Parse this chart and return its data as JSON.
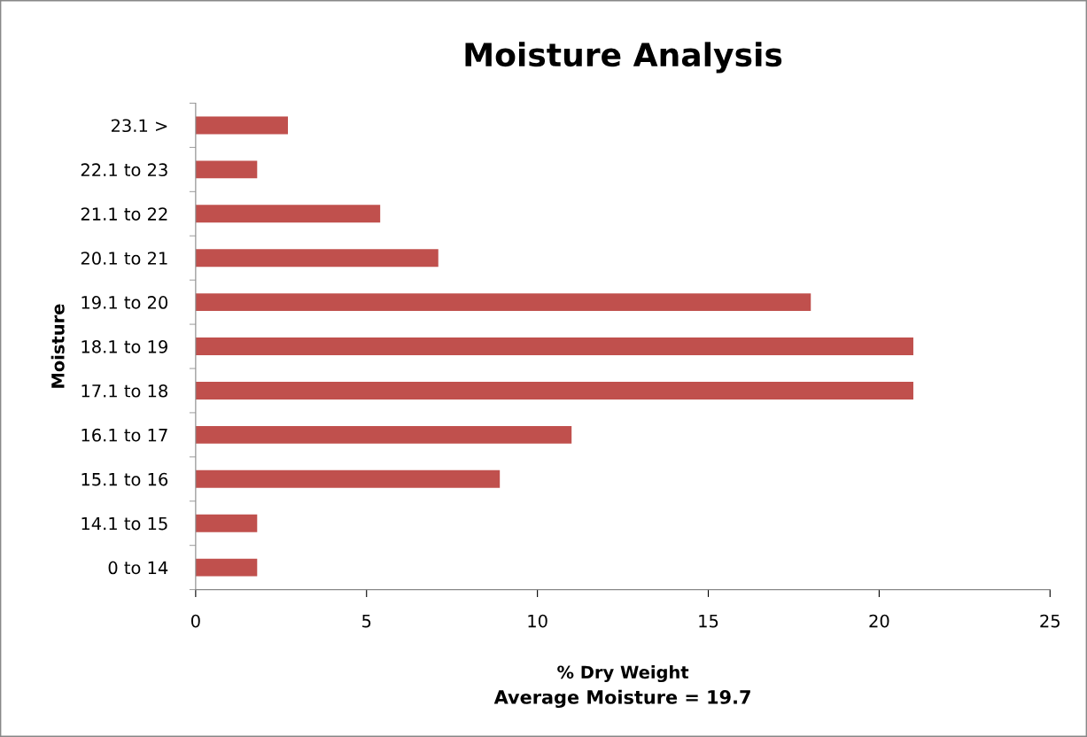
{
  "chart_data": {
    "type": "bar",
    "orientation": "horizontal",
    "title": "Moisture Analysis",
    "xlabel": "% Dry Weight",
    "ylabel": "Moisture",
    "categories": [
      "23.1 >",
      "22.1 to 23",
      "21.1 to 22",
      "20.1 to 21",
      "19.1 to 20",
      "18.1 to 19",
      "17.1 to 18",
      "16.1 to 17",
      "15.1 to 16",
      "14.1 to 15",
      "0 to 14"
    ],
    "values": [
      2.7,
      1.8,
      5.4,
      7.1,
      18.0,
      21.0,
      21.0,
      11.0,
      8.9,
      1.8,
      1.8
    ],
    "color": "#c0504d",
    "xlim": [
      0,
      25
    ],
    "xticks": [
      0,
      5,
      10,
      15,
      20,
      25
    ],
    "grid": false,
    "legend": false,
    "annotations": [
      "Average Moisture = 19.7"
    ]
  }
}
